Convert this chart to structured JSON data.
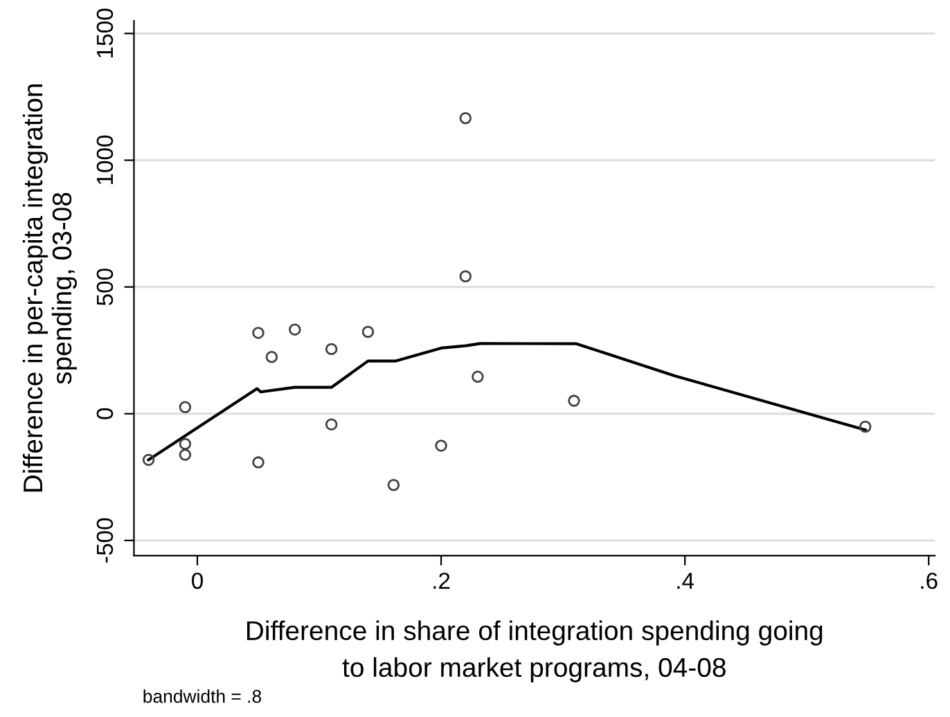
{
  "chart_data": {
    "type": "scatter",
    "xlabel": "Difference in share of integration spending going\nto labor market programs, 04-08",
    "ylabel": "Difference in per-capita integration\nspending, 03-08",
    "series": [
      {
        "color": "#404040",
        "marker": "circle",
        "x": [
          -0.04,
          -0.01,
          -0.01,
          -0.01,
          0.05,
          0.05,
          0.061,
          0.08,
          0.11,
          0.11,
          0.14,
          0.161,
          0.2,
          0.22,
          0.22,
          0.23,
          0.309,
          0.548
        ],
        "values": [
          -182,
          26,
          -119,
          -162,
          319,
          -192,
          224,
          332,
          255,
          -42,
          323,
          -281,
          -126,
          1166,
          542,
          146,
          51,
          -51
        ]
      },
      {
        "type": "line",
        "color": "#000000",
        "marker": "none",
        "line_style": "solid",
        "x": [
          -0.04,
          0.049,
          0.052,
          0.08,
          0.11,
          0.14,
          0.163,
          0.2,
          0.22,
          0.232,
          0.311,
          0.392,
          0.548
        ],
        "values": [
          -182,
          99,
          86,
          104,
          104,
          208,
          208,
          259,
          268,
          277,
          276,
          149,
          -64
        ]
      }
    ],
    "xlim": [
      -0.052,
      0.605
    ],
    "ylim": [
      -560,
      1550
    ],
    "xticks": [
      {
        "value": 0,
        "label": "0"
      },
      {
        "value": 0.2,
        "label": ".2"
      },
      {
        "value": 0.4,
        "label": ".4"
      },
      {
        "value": 0.6,
        "label": ".6"
      }
    ],
    "yticks": [
      -500,
      0,
      500,
      1000,
      1500
    ],
    "grid": "y",
    "legend": false,
    "annotations": [
      "bandwidth = .8"
    ]
  }
}
